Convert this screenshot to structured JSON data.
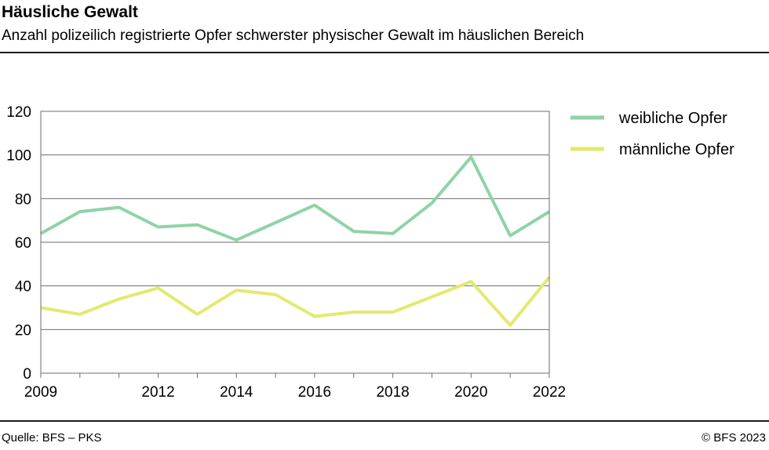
{
  "header": {
    "title": "Häusliche Gewalt",
    "subtitle": "Anzahl polizeilich registrierte Opfer schwerster physischer Gewalt im häuslichen Bereich"
  },
  "footer": {
    "source": "Quelle: BFS – PKS",
    "copyright": "© BFS 2023"
  },
  "chart_data": {
    "type": "line",
    "x": [
      2009,
      2010,
      2011,
      2012,
      2013,
      2014,
      2015,
      2016,
      2017,
      2018,
      2019,
      2020,
      2021,
      2022
    ],
    "x_tick_labels": [
      "2009",
      "2012",
      "2014",
      "2016",
      "2018",
      "2020",
      "2022"
    ],
    "y_tick_labels": [
      "0",
      "20",
      "40",
      "60",
      "80",
      "100",
      "120"
    ],
    "ylim": [
      0,
      120
    ],
    "xlim": [
      2009,
      2022
    ],
    "grid": true,
    "legend_position": "right",
    "series": [
      {
        "name": "weibliche Opfer",
        "color": "#8fd3a6",
        "values": [
          64,
          74,
          76,
          67,
          68,
          61,
          69,
          77,
          65,
          64,
          78,
          99,
          63,
          74
        ]
      },
      {
        "name": "männliche Opfer",
        "color": "#e2ea6e",
        "values": [
          30,
          27,
          34,
          39,
          27,
          38,
          36,
          26,
          28,
          28,
          35,
          42,
          22,
          44
        ]
      }
    ]
  }
}
